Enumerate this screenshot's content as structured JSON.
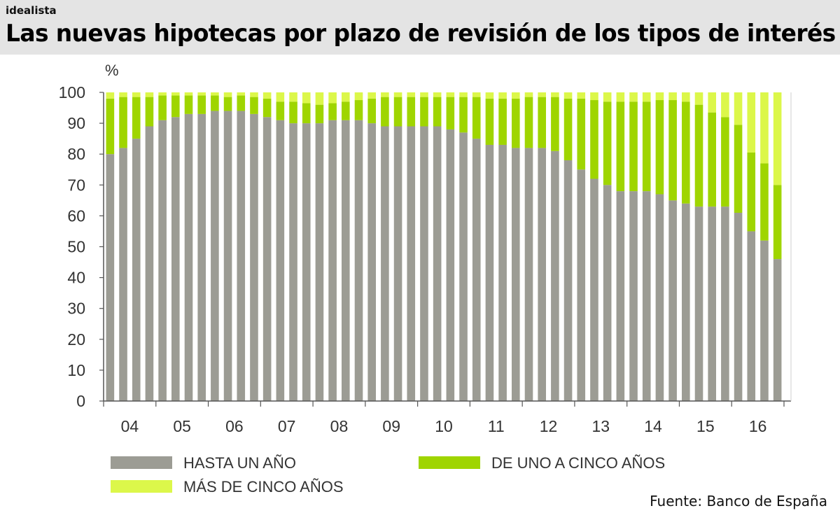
{
  "brand": "idealista",
  "title": "Las nuevas hipotecas por plazo de revisión de los tipos de interés",
  "source": "Fuente: Banco de España",
  "colors": {
    "hasta_un_ano": "#9c9c94",
    "uno_a_cinco": "#9fd500",
    "mas_de_cinco": "#dcf74a",
    "axis": "#555555",
    "text": "#333333"
  },
  "chart_data": {
    "type": "bar",
    "stacked": true,
    "ylabel": "%",
    "ylim": [
      0,
      100
    ],
    "yticks": [
      0,
      10,
      20,
      30,
      40,
      50,
      60,
      70,
      80,
      90,
      100
    ],
    "year_labels": [
      "04",
      "05",
      "06",
      "07",
      "08",
      "09",
      "10",
      "11",
      "12",
      "13",
      "14",
      "15",
      "16"
    ],
    "bars_per_year": 4,
    "legend_position": "bottom",
    "series": [
      {
        "name": "HASTA UN AÑO",
        "values": [
          80,
          82,
          85,
          89,
          91,
          92,
          93,
          93,
          94,
          94,
          94,
          93,
          92,
          91,
          90,
          90,
          90,
          91,
          91,
          91,
          90,
          89,
          89,
          89,
          89,
          89,
          88,
          87,
          85,
          83,
          83,
          82,
          82,
          82,
          81,
          78,
          75,
          72,
          70,
          68,
          68,
          68,
          67,
          65,
          64,
          63,
          63,
          63,
          61,
          55,
          52,
          46
        ]
      },
      {
        "name": "DE UNO A CINCO AÑOS",
        "values": [
          18,
          16.5,
          13.5,
          9.5,
          8,
          7,
          6,
          6,
          5,
          4.5,
          5,
          5.5,
          6,
          6,
          7,
          6.5,
          6,
          5.5,
          6,
          6.5,
          8,
          9.5,
          9.5,
          9.5,
          9.5,
          9.5,
          10.5,
          11.5,
          13.5,
          15,
          15,
          16,
          16.5,
          16.5,
          17.5,
          20,
          23,
          25.5,
          27,
          29,
          29,
          29,
          30.5,
          32.5,
          33,
          33,
          30.5,
          29,
          28.5,
          25.5,
          25,
          24
        ]
      },
      {
        "name": "MÁS DE CINCO AÑOS",
        "values": [
          2,
          1.5,
          1.5,
          1.5,
          1,
          1,
          1,
          1,
          1,
          1.5,
          1,
          1.5,
          2,
          3,
          3,
          3.5,
          4,
          3.5,
          3,
          2.5,
          2,
          1.5,
          1.5,
          1.5,
          1.5,
          1.5,
          1.5,
          1.5,
          1.5,
          2,
          2,
          2,
          1.5,
          1.5,
          1.5,
          2,
          2,
          2.5,
          3,
          3,
          3,
          3,
          2.5,
          2.5,
          3,
          4,
          6.5,
          8,
          10.5,
          19.5,
          23,
          30
        ]
      }
    ]
  }
}
